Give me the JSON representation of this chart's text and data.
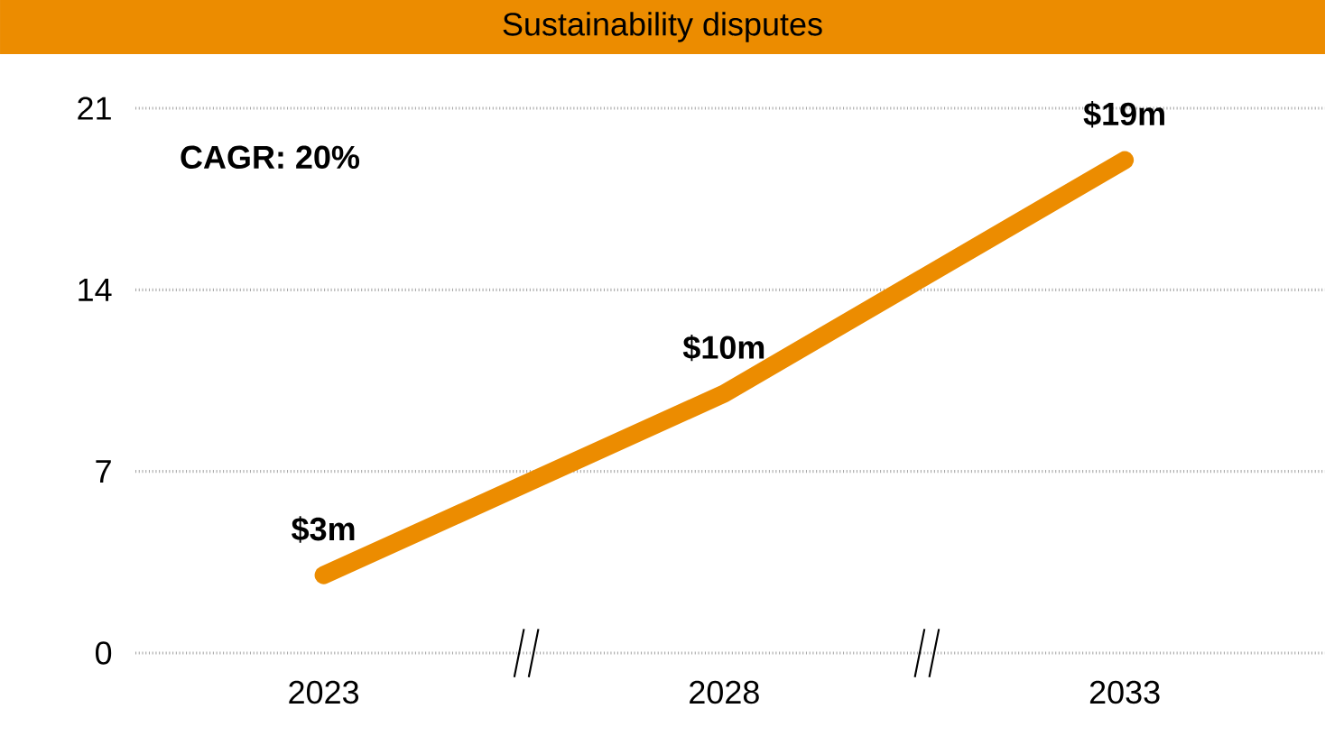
{
  "chart_data": {
    "type": "line",
    "title": "Sustainability disputes",
    "categories": [
      "2023",
      "2028",
      "2033"
    ],
    "values": [
      3,
      10,
      19
    ],
    "color": "#ec8c00",
    "value_labels": [
      "$3m",
      "$10m",
      "$19m"
    ],
    "ylim": [
      0,
      21
    ],
    "yticks": [
      0,
      7,
      14,
      21
    ],
    "grid": "y",
    "annotations": [
      "CAGR: 20%"
    ]
  }
}
